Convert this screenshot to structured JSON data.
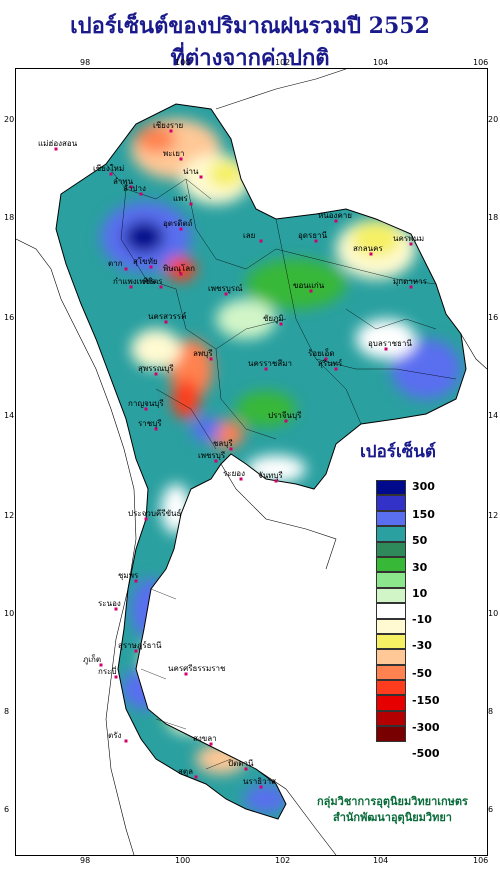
{
  "title": {
    "line1": "เปอร์เซ็นต์ของปริมาณฝนรวมปี 2552",
    "line2": "ที่ต่างจากค่าปกติ"
  },
  "axes": {
    "x_ticks": [
      "98",
      "100",
      "102",
      "104",
      "106"
    ],
    "y_ticks": [
      "20",
      "18",
      "16",
      "14",
      "12",
      "10",
      "8",
      "6"
    ]
  },
  "legend": {
    "title": "เปอร์เซ็นต์",
    "colors": [
      "#000a8c",
      "#3232c8",
      "#5a6ef0",
      "#2aa0a0",
      "#2e8a5a",
      "#37b837",
      "#8ce68c",
      "#d2f5c8",
      "#ffffff",
      "#fffad2",
      "#f5f064",
      "#ffc896",
      "#ff8250",
      "#ff3c1e",
      "#e60000",
      "#b40000",
      "#780000"
    ],
    "labels": [
      "300",
      "150",
      "50",
      "30",
      "10",
      "-10",
      "-30",
      "-50",
      "-150",
      "-300",
      "-500"
    ]
  },
  "places": [
    "แม่ฮ่องสอน",
    "เชียงราย",
    "เชียงใหม่",
    "พะเยา",
    "น่าน",
    "แพร่",
    "ลำพูน",
    "ลำปาง",
    "อุตรดิตถ์",
    "ตาก",
    "สุโขทัย",
    "พิษณุโลก",
    "กำแพงเพชร",
    "พิจิตร",
    "เพชรบูรณ์",
    "หนองคาย",
    "อุดรธานี",
    "สกลนคร",
    "นครพนม",
    "มุกดาหาร",
    "เลย",
    "ขอนแก่น",
    "ชัยภูมิ",
    "นครสวรรค์",
    "ลพบุรี",
    "สุพรรณบุรี",
    "กาญจนบุรี",
    "นครราชสีมา",
    "ร้อยเอ็ด",
    "อุบลราชธานี",
    "สุรินทร์",
    "ปราจีนบุรี",
    "ชลบุรี",
    "ระยอง",
    "จันทบุรี",
    "ราชบุรี",
    "เพชรบุรี",
    "ประจวบคีรีขันธ์",
    "ชุมพร",
    "ระนอง",
    "สุราษฎร์ธานี",
    "นครศรีธรรมราช",
    "ภูเก็ต",
    "กระบี่",
    "ตรัง",
    "สงขลา",
    "สตูล",
    "ปัตตานี",
    "นราธิวาส"
  ],
  "credit": {
    "line1": "กลุ่มวิชาการอุตุนิยมวิทยาเกษตร",
    "line2": "สำนักพัฒนาอุตุนิยมวิทยา"
  }
}
